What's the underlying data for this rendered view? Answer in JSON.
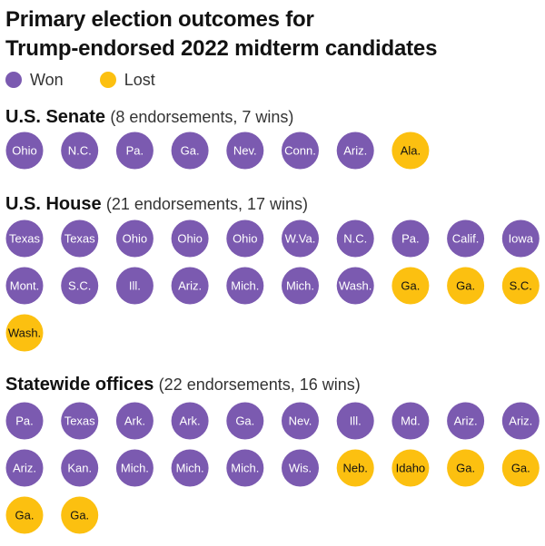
{
  "title_line1": "Primary election outcomes for",
  "title_line2": "Trump-endorsed 2022 midterm candidates",
  "colors": {
    "won": "#7b5ab0",
    "lost": "#fcc010",
    "won_text": "#ffffff",
    "lost_text": "#121212"
  },
  "legend": [
    {
      "key": "won",
      "label": "Won"
    },
    {
      "key": "lost",
      "label": "Lost"
    }
  ],
  "chart_data": {
    "type": "dot grid",
    "legend_placement": "top-left",
    "sections": [
      {
        "name": "U.S. Senate",
        "detail": "(8 endorsements, 7 wins)",
        "endorsements": 8,
        "wins": 7,
        "items": [
          {
            "label": "Ohio",
            "outcome": "won"
          },
          {
            "label": "N.C.",
            "outcome": "won"
          },
          {
            "label": "Pa.",
            "outcome": "won"
          },
          {
            "label": "Ga.",
            "outcome": "won"
          },
          {
            "label": "Nev.",
            "outcome": "won"
          },
          {
            "label": "Conn.",
            "outcome": "won"
          },
          {
            "label": "Ariz.",
            "outcome": "won"
          },
          {
            "label": "Ala.",
            "outcome": "lost"
          }
        ]
      },
      {
        "name": "U.S. House",
        "detail": "(21 endorsements, 17 wins)",
        "endorsements": 21,
        "wins": 17,
        "items": [
          {
            "label": "Texas",
            "outcome": "won"
          },
          {
            "label": "Texas",
            "outcome": "won"
          },
          {
            "label": "Ohio",
            "outcome": "won"
          },
          {
            "label": "Ohio",
            "outcome": "won"
          },
          {
            "label": "Ohio",
            "outcome": "won"
          },
          {
            "label": "W.Va.",
            "outcome": "won"
          },
          {
            "label": "N.C.",
            "outcome": "won"
          },
          {
            "label": "Pa.",
            "outcome": "won"
          },
          {
            "label": "Calif.",
            "outcome": "won"
          },
          {
            "label": "Iowa",
            "outcome": "won"
          },
          {
            "label": "Mont.",
            "outcome": "won"
          },
          {
            "label": "S.C.",
            "outcome": "won"
          },
          {
            "label": "Ill.",
            "outcome": "won"
          },
          {
            "label": "Ariz.",
            "outcome": "won"
          },
          {
            "label": "Mich.",
            "outcome": "won"
          },
          {
            "label": "Mich.",
            "outcome": "won"
          },
          {
            "label": "Wash.",
            "outcome": "won"
          },
          {
            "label": "Ga.",
            "outcome": "lost"
          },
          {
            "label": "Ga.",
            "outcome": "lost"
          },
          {
            "label": "S.C.",
            "outcome": "lost"
          },
          {
            "label": "Wash.",
            "outcome": "lost"
          }
        ]
      },
      {
        "name": "Statewide offices",
        "detail": "(22 endorsements, 16 wins)",
        "endorsements": 22,
        "wins": 16,
        "items": [
          {
            "label": "Pa.",
            "outcome": "won"
          },
          {
            "label": "Texas",
            "outcome": "won"
          },
          {
            "label": "Ark.",
            "outcome": "won"
          },
          {
            "label": "Ark.",
            "outcome": "won"
          },
          {
            "label": "Ga.",
            "outcome": "won"
          },
          {
            "label": "Nev.",
            "outcome": "won"
          },
          {
            "label": "Ill.",
            "outcome": "won"
          },
          {
            "label": "Md.",
            "outcome": "won"
          },
          {
            "label": "Ariz.",
            "outcome": "won"
          },
          {
            "label": "Ariz.",
            "outcome": "won"
          },
          {
            "label": "Ariz.",
            "outcome": "won"
          },
          {
            "label": "Kan.",
            "outcome": "won"
          },
          {
            "label": "Mich.",
            "outcome": "won"
          },
          {
            "label": "Mich.",
            "outcome": "won"
          },
          {
            "label": "Mich.",
            "outcome": "won"
          },
          {
            "label": "Wis.",
            "outcome": "won"
          },
          {
            "label": "Neb.",
            "outcome": "lost"
          },
          {
            "label": "Idaho",
            "outcome": "lost"
          },
          {
            "label": "Ga.",
            "outcome": "lost"
          },
          {
            "label": "Ga.",
            "outcome": "lost"
          },
          {
            "label": "Ga.",
            "outcome": "lost"
          },
          {
            "label": "Ga.",
            "outcome": "lost"
          }
        ]
      }
    ]
  }
}
